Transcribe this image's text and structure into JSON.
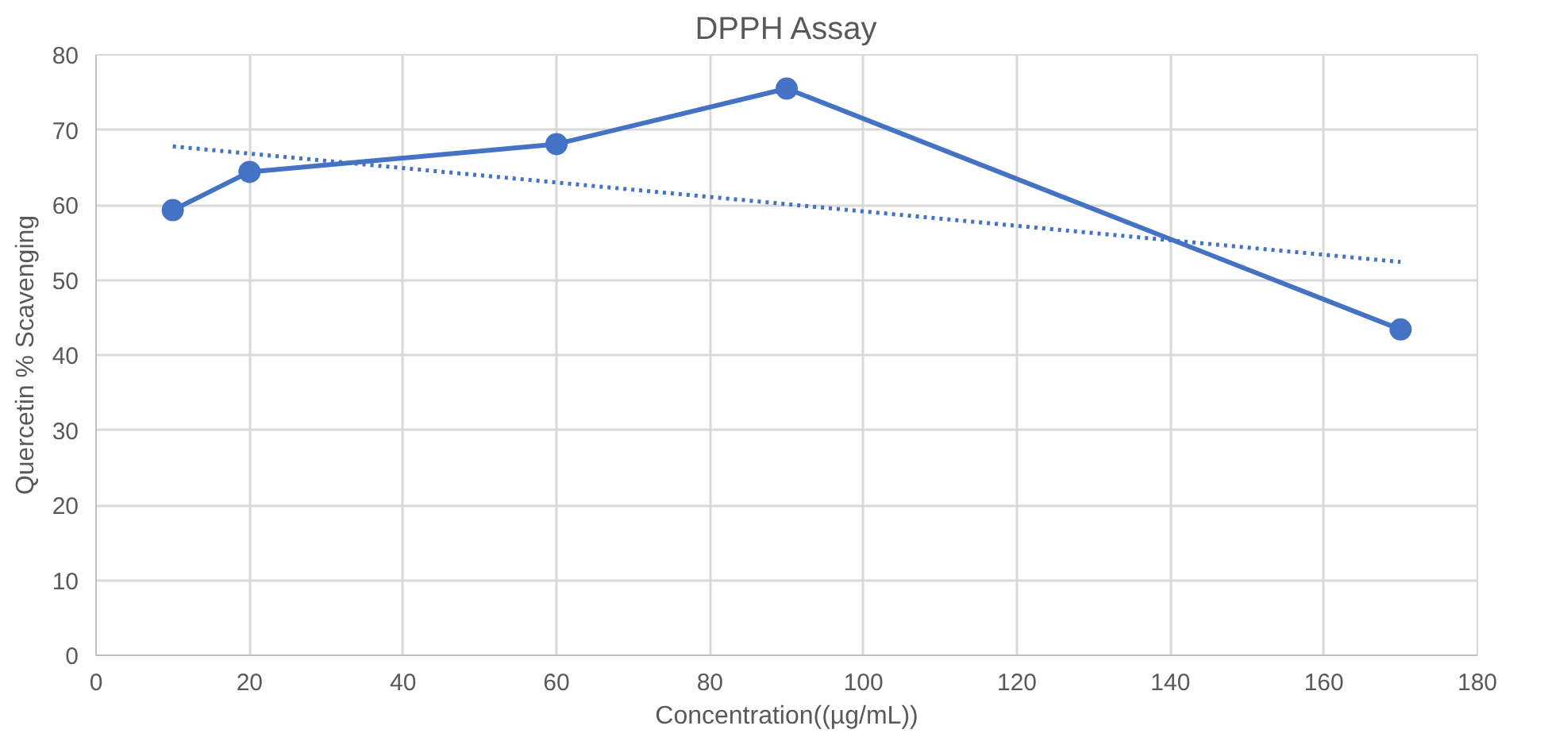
{
  "chart_data": {
    "type": "line",
    "title": "DPPH Assay",
    "xlabel": "Concentration((µg/mL))",
    "ylabel": "Quercetin % Scavenging",
    "xlim": [
      0,
      180
    ],
    "xticks": [
      0,
      20,
      40,
      60,
      80,
      100,
      120,
      140,
      160,
      180
    ],
    "ylim": [
      0,
      80
    ],
    "yticks": [
      0,
      10,
      20,
      30,
      40,
      50,
      60,
      70,
      80
    ],
    "grid": true,
    "series": [
      {
        "color": "#4472c4",
        "x": [
          10,
          20,
          60,
          90,
          170
        ],
        "values": [
          59.3,
          64.4,
          68.1,
          75.5,
          43.4
        ],
        "marker": "circle",
        "line_style": "solid"
      },
      {
        "color": "#4472c4",
        "x": [
          10,
          170
        ],
        "values": [
          67.8,
          52.4
        ],
        "marker": "none",
        "line_style": "dotted"
      }
    ]
  }
}
